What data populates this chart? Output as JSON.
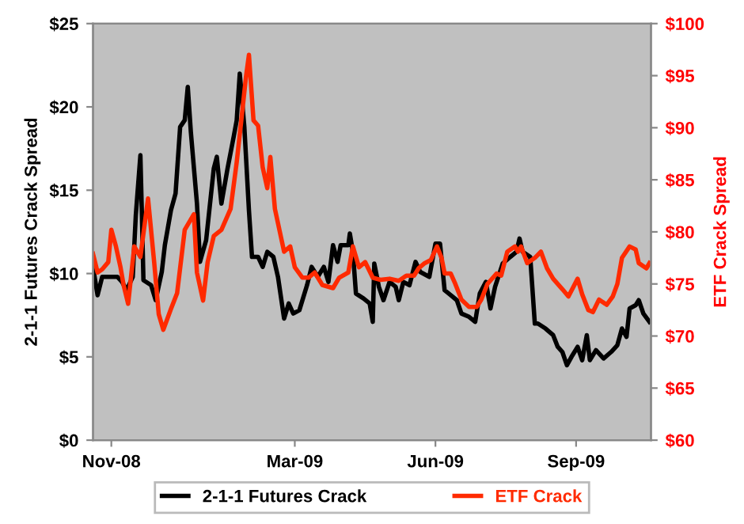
{
  "chart_data": {
    "type": "line",
    "ylabel": "2-1-1 Futures Crack Spread",
    "y2label": "ETF Crack Spread",
    "xlim": [
      "2008-10-20",
      "2009-10-20"
    ],
    "xticks": [
      {
        "value": "2008-11-01",
        "label": "Nov-08"
      },
      {
        "value": "2009-03-01",
        "label": "Mar-09"
      },
      {
        "value": "2009-06-01",
        "label": "Jun-09"
      },
      {
        "value": "2009-09-01",
        "label": "Sep-09"
      }
    ],
    "ylim": [
      0,
      25
    ],
    "yticks": [
      {
        "value": 0,
        "label": "$0"
      },
      {
        "value": 5,
        "label": "$5"
      },
      {
        "value": 10,
        "label": "$10"
      },
      {
        "value": 15,
        "label": "$15"
      },
      {
        "value": 20,
        "label": "$20"
      },
      {
        "value": 25,
        "label": "$25"
      }
    ],
    "y2lim": [
      60,
      100
    ],
    "y2ticks": [
      {
        "value": 60,
        "label": "$60"
      },
      {
        "value": 65,
        "label": "$65"
      },
      {
        "value": 70,
        "label": "$70"
      },
      {
        "value": 75,
        "label": "$75"
      },
      {
        "value": 80,
        "label": "$80"
      },
      {
        "value": 85,
        "label": "$85"
      },
      {
        "value": 90,
        "label": "$90"
      },
      {
        "value": 95,
        "label": "$95"
      },
      {
        "value": 100,
        "label": "$100"
      }
    ],
    "grid": false,
    "legend": "bottom",
    "marker": "none",
    "line_style": "solid",
    "series": [
      {
        "name": "2-1-1 Futures Crack",
        "color": "#000000",
        "x": [
          "2008-10-20",
          "2008-10-23",
          "2008-10-26",
          "2008-11-05",
          "2008-11-08",
          "2008-11-11",
          "2008-11-15",
          "2008-11-17",
          "2008-11-20",
          "2008-11-21",
          "2008-11-22",
          "2008-11-27",
          "2008-11-30",
          "2008-12-04",
          "2008-12-06",
          "2008-12-10",
          "2008-12-13",
          "2008-12-16",
          "2008-12-19",
          "2008-12-21",
          "2008-12-23",
          "2008-12-27",
          "2008-12-29",
          "2009-01-02",
          "2009-01-07",
          "2009-01-09",
          "2009-01-12",
          "2009-01-16",
          "2009-01-20",
          "2009-01-22",
          "2009-01-24",
          "2009-01-27",
          "2009-01-30",
          "2009-02-01",
          "2009-02-05",
          "2009-02-08",
          "2009-02-11",
          "2009-02-15",
          "2009-02-18",
          "2009-02-22",
          "2009-02-25",
          "2009-02-28",
          "2009-03-04",
          "2009-03-09",
          "2009-03-12",
          "2009-03-16",
          "2009-03-20",
          "2009-03-23",
          "2009-03-26",
          "2009-03-29",
          "2009-03-31",
          "2009-04-05",
          "2009-04-06",
          "2009-04-08",
          "2009-04-10",
          "2009-04-15",
          "2009-04-19",
          "2009-04-21",
          "2009-04-22",
          "2009-04-25",
          "2009-04-28",
          "2009-05-02",
          "2009-05-06",
          "2009-05-08",
          "2009-05-11",
          "2009-05-15",
          "2009-05-19",
          "2009-05-22",
          "2009-05-28",
          "2009-06-01",
          "2009-06-04",
          "2009-06-07",
          "2009-06-11",
          "2009-06-15",
          "2009-06-18",
          "2009-06-23",
          "2009-06-27",
          "2009-06-30",
          "2009-07-04",
          "2009-07-07",
          "2009-07-10",
          "2009-07-15",
          "2009-07-20",
          "2009-07-24",
          "2009-07-26",
          "2009-07-28",
          "2009-08-02",
          "2009-08-05",
          "2009-08-07",
          "2009-08-12",
          "2009-08-17",
          "2009-08-20",
          "2009-08-23",
          "2009-08-26",
          "2009-08-29",
          "2009-09-02",
          "2009-09-05",
          "2009-09-08",
          "2009-09-10",
          "2009-09-14",
          "2009-09-19",
          "2009-09-24",
          "2009-09-28",
          "2009-10-01",
          "2009-10-04",
          "2009-10-06",
          "2009-10-10",
          "2009-10-12",
          "2009-10-15",
          "2009-10-19"
        ],
        "values": [
          10.4,
          8.7,
          9.8,
          9.8,
          9.5,
          9.0,
          9.8,
          13.5,
          17.1,
          13.5,
          9.6,
          9.3,
          8.4,
          10.1,
          11.7,
          13.8,
          14.8,
          18.8,
          19.2,
          21.2,
          18.5,
          14.2,
          10.7,
          12.0,
          16.3,
          17.0,
          14.2,
          16.3,
          18.2,
          19.2,
          22.0,
          18.8,
          13.8,
          11.0,
          11.0,
          10.4,
          11.3,
          11.0,
          9.8,
          7.3,
          8.2,
          7.6,
          7.8,
          9.3,
          10.4,
          9.8,
          10.4,
          9.5,
          11.7,
          10.7,
          11.7,
          11.7,
          12.4,
          11.3,
          8.8,
          8.5,
          8.2,
          7.1,
          10.6,
          9.2,
          8.4,
          9.5,
          9.2,
          8.4,
          9.5,
          9.3,
          10.7,
          10.1,
          9.8,
          11.8,
          11.8,
          9.0,
          8.7,
          8.4,
          7.6,
          7.4,
          7.1,
          8.8,
          9.5,
          7.9,
          9.2,
          10.6,
          11.0,
          11.3,
          12.1,
          11.3,
          11.0,
          7.0,
          7.0,
          6.7,
          6.3,
          5.6,
          5.3,
          4.5,
          5.0,
          5.6,
          4.8,
          6.3,
          4.8,
          5.4,
          4.9,
          5.3,
          5.7,
          6.7,
          6.2,
          7.9,
          8.1,
          8.4,
          7.6,
          7.1
        ]
      },
      {
        "name": "ETF Crack",
        "color": "#ff2a00",
        "axis": "y2",
        "x": [
          "2008-10-20",
          "2008-10-23",
          "2008-10-26",
          "2008-10-30",
          "2008-11-01",
          "2008-11-04",
          "2008-11-07",
          "2008-11-09",
          "2008-11-12",
          "2008-11-16",
          "2008-11-20",
          "2008-11-25",
          "2008-11-29",
          "2008-12-02",
          "2008-12-05",
          "2008-12-10",
          "2008-12-14",
          "2008-12-19",
          "2008-12-25",
          "2008-12-27",
          "2008-12-31",
          "2009-01-03",
          "2009-01-07",
          "2009-01-12",
          "2009-01-18",
          "2009-01-22",
          "2009-01-25",
          "2009-01-28",
          "2009-01-30",
          "2009-02-02",
          "2009-02-05",
          "2009-02-08",
          "2009-02-11",
          "2009-02-13",
          "2009-02-16",
          "2009-02-22",
          "2009-02-26",
          "2009-03-01",
          "2009-03-06",
          "2009-03-10",
          "2009-03-14",
          "2009-03-19",
          "2009-03-26",
          "2009-03-30",
          "2009-04-05",
          "2009-04-08",
          "2009-04-12",
          "2009-04-16",
          "2009-04-21",
          "2009-04-26",
          "2009-05-02",
          "2009-05-08",
          "2009-05-13",
          "2009-05-18",
          "2009-05-21",
          "2009-05-25",
          "2009-05-29",
          "2009-06-02",
          "2009-06-05",
          "2009-06-07",
          "2009-06-11",
          "2009-06-14",
          "2009-06-18",
          "2009-06-23",
          "2009-06-28",
          "2009-07-01",
          "2009-07-05",
          "2009-07-11",
          "2009-07-14",
          "2009-07-18",
          "2009-07-23",
          "2009-07-25",
          "2009-07-27",
          "2009-07-31",
          "2009-08-05",
          "2009-08-09",
          "2009-08-13",
          "2009-08-17",
          "2009-08-23",
          "2009-08-27",
          "2009-09-02",
          "2009-09-05",
          "2009-09-09",
          "2009-09-12",
          "2009-09-16",
          "2009-09-21",
          "2009-09-25",
          "2009-09-28",
          "2009-10-01",
          "2009-10-06",
          "2009-10-10",
          "2009-10-12",
          "2009-10-17",
          "2009-10-19"
        ],
        "values": [
          77.9,
          76.1,
          76.4,
          77.1,
          80.2,
          78.6,
          76.6,
          74.9,
          73.1,
          78.6,
          77.6,
          83.2,
          77.1,
          72.1,
          70.6,
          72.6,
          74.1,
          80.2,
          81.7,
          76.1,
          73.4,
          77.1,
          79.6,
          80.2,
          82.2,
          86.7,
          90.7,
          94.8,
          97.0,
          90.7,
          90.2,
          86.2,
          84.2,
          87.2,
          82.2,
          78.1,
          78.6,
          76.6,
          75.6,
          75.6,
          76.1,
          74.9,
          74.6,
          75.6,
          76.1,
          78.6,
          76.6,
          77.1,
          75.6,
          75.4,
          75.5,
          75.3,
          75.8,
          75.8,
          76.5,
          77.0,
          77.3,
          78.6,
          77.5,
          76.0,
          76.0,
          75.0,
          73.5,
          72.8,
          72.8,
          73.5,
          75.0,
          76.0,
          75.8,
          78.1,
          78.6,
          78.1,
          78.6,
          77.0,
          77.5,
          78.1,
          76.5,
          75.5,
          74.5,
          73.8,
          75.5,
          74.0,
          72.5,
          72.3,
          73.5,
          73.0,
          73.8,
          75.0,
          77.5,
          78.6,
          78.3,
          77.0,
          76.5,
          77.0
        ]
      }
    ]
  }
}
